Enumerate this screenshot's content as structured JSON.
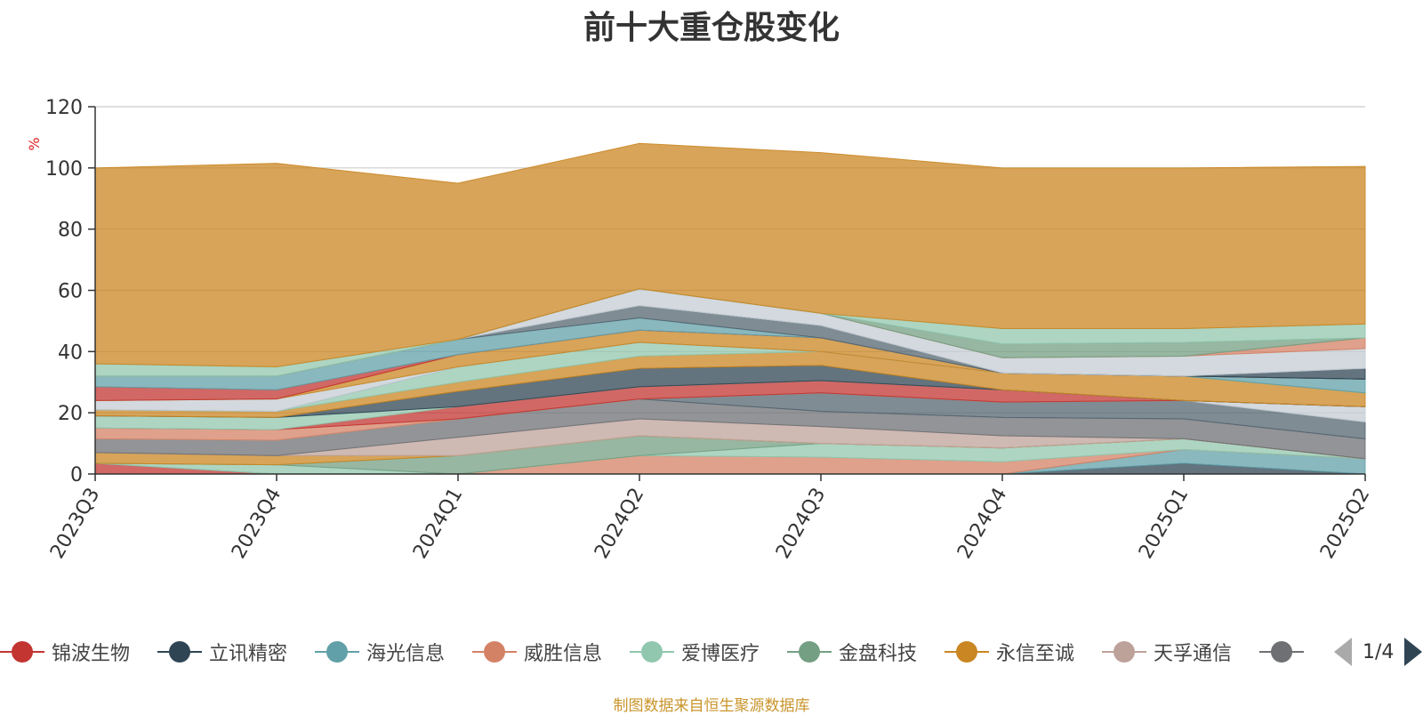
{
  "title": "前十大重仓股变化",
  "source_note": "制图数据来自恒生聚源数据库",
  "legend": {
    "items": [
      {
        "label": "锦波生物",
        "color": "#c23531"
      },
      {
        "label": "立讯精密",
        "color": "#2f4554"
      },
      {
        "label": "海光信息",
        "color": "#61a0a8"
      },
      {
        "label": "威胜信息",
        "color": "#d48265"
      },
      {
        "label": "爱博医疗",
        "color": "#91c7ae"
      },
      {
        "label": "金盘科技",
        "color": "#749f83"
      },
      {
        "label": "永信至诚",
        "color": "#ca8622"
      },
      {
        "label": "天孚通信",
        "color": "#bda29a"
      },
      {
        "label": "",
        "color": "#6e7074"
      }
    ],
    "pager": "1/4"
  },
  "chart_data": {
    "type": "area",
    "stacked": true,
    "categories": [
      "2023Q3",
      "2023Q4",
      "2024Q1",
      "2024Q2",
      "2024Q3",
      "2024Q4",
      "2025Q1",
      "2025Q2"
    ],
    "ylabel": "%",
    "ylim": [
      0,
      120
    ],
    "yticks": [
      0,
      20,
      40,
      60,
      80,
      100,
      120
    ],
    "grid": true,
    "series": [
      {
        "color": "#c23531",
        "values": [
          3.5,
          0,
          0,
          0,
          0,
          0,
          0,
          0
        ]
      },
      {
        "color": "#2f4554",
        "values": [
          0,
          0,
          0,
          0,
          0,
          0,
          3.5,
          0
        ]
      },
      {
        "color": "#61a0a8",
        "values": [
          0,
          0,
          0,
          0,
          0,
          0,
          4.5,
          5
        ]
      },
      {
        "color": "#d48265",
        "values": [
          0,
          0,
          0,
          6,
          5.5,
          4,
          0,
          0
        ]
      },
      {
        "color": "#91c7ae",
        "values": [
          0,
          3,
          0,
          0,
          4.5,
          4.5,
          3.5,
          0
        ]
      },
      {
        "color": "#749f83",
        "values": [
          0,
          0,
          6,
          6.5,
          0,
          0,
          0,
          0
        ]
      },
      {
        "color": "#ca8622",
        "values": [
          3.5,
          3,
          0,
          0,
          0,
          0,
          0,
          0
        ]
      },
      {
        "color": "#bda29a",
        "values": [
          0,
          0,
          6,
          5.5,
          5.5,
          4,
          0,
          0
        ]
      },
      {
        "color": "#6e7074",
        "values": [
          4.5,
          5,
          6,
          6.5,
          5,
          6,
          6.5,
          6.5
        ]
      },
      {
        "color": "#546570",
        "values": [
          0,
          0,
          0,
          0,
          6,
          5,
          6,
          5.5
        ]
      },
      {
        "color": "#c4ccd3",
        "values": [
          0,
          0,
          0,
          0,
          0,
          0,
          0,
          5
        ]
      },
      {
        "color": "#d48265",
        "values": [
          3.5,
          3.5,
          0,
          0,
          0,
          0,
          0,
          0
        ]
      },
      {
        "color": "#c23531",
        "values": [
          0,
          0,
          4,
          4,
          4,
          4,
          0,
          0
        ]
      },
      {
        "color": "#91c7ae",
        "values": [
          4,
          4,
          0,
          0,
          0,
          0,
          0,
          0
        ]
      },
      {
        "color": "#2f4554",
        "values": [
          0,
          0,
          5,
          6,
          5,
          0,
          0,
          0
        ]
      },
      {
        "color": "#ca8622",
        "values": [
          2,
          2,
          3,
          4,
          4.5,
          5.5,
          8,
          4.5
        ]
      },
      {
        "color": "#91c7ae",
        "values": [
          0,
          0,
          5,
          4.5,
          0,
          0,
          0,
          0
        ]
      },
      {
        "color": "#61a0a8",
        "values": [
          0,
          0,
          0,
          0,
          0,
          0,
          0,
          4.5
        ]
      },
      {
        "color": "#c4ccd3",
        "values": [
          3,
          4,
          0,
          0,
          0,
          0,
          0,
          0
        ]
      },
      {
        "color": "#ca8622",
        "values": [
          0,
          0,
          4,
          4,
          4.5,
          0,
          0,
          0
        ]
      },
      {
        "color": "#c23531",
        "values": [
          4.5,
          3,
          0,
          0,
          0,
          0,
          0,
          0
        ]
      },
      {
        "color": "#61a0a8",
        "values": [
          3.5,
          4.5,
          5,
          4,
          0,
          0,
          0,
          0
        ]
      },
      {
        "color": "#546570",
        "values": [
          0,
          0,
          0,
          4,
          4,
          0,
          0,
          0
        ]
      },
      {
        "color": "#2f4554",
        "values": [
          0,
          0,
          0,
          0,
          0,
          0,
          0,
          3.5
        ]
      },
      {
        "color": "#c4ccd3",
        "values": [
          0,
          0,
          0,
          5.5,
          4,
          5,
          6.5,
          6.5
        ]
      },
      {
        "color": "#d48265",
        "values": [
          0,
          0,
          0,
          0,
          0,
          0,
          0,
          3.5
        ]
      },
      {
        "color": "#749f83",
        "values": [
          0,
          0,
          0,
          0,
          0,
          4.5,
          4.5,
          0
        ]
      },
      {
        "color": "#91c7ae",
        "values": [
          4,
          3,
          0,
          0,
          0,
          5,
          4.5,
          4.5
        ]
      },
      {
        "color": "#ca8622",
        "values": [
          64,
          66.5,
          51,
          47.5,
          52.5,
          52.5,
          52.5,
          51.5
        ]
      }
    ]
  }
}
